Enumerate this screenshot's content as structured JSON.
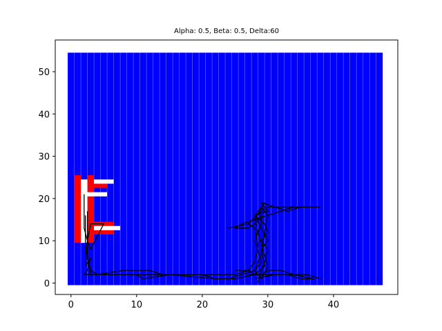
{
  "chart_data": {
    "type": "heatmap",
    "title": "Alpha: 0.5, Beta: 0.5, Delta:60",
    "xlabel": "",
    "ylabel": "",
    "xlim": [
      -2.4,
      49.8
    ],
    "ylim": [
      -2.7,
      57.5
    ],
    "xticks": [
      0,
      10,
      20,
      30,
      40
    ],
    "yticks": [
      0,
      10,
      20,
      30,
      40,
      50
    ],
    "grid": false,
    "colors": {
      "background_cells": "#0000ff",
      "cell_separator": "#ffffff",
      "obstacle": "#ff0000",
      "highlight": "#ffffff",
      "trajectory": "#000000"
    },
    "grid_extent": {
      "x": [
        -0.5,
        47.5
      ],
      "y": [
        -0.5,
        54.5
      ]
    },
    "red_regions": [
      {
        "x": [
          0.5,
          1.5
        ],
        "y": [
          9.5,
          25.5
        ]
      },
      {
        "x": [
          2.5,
          3.5
        ],
        "y": [
          9.5,
          25.5
        ]
      },
      {
        "x": [
          3.5,
          5.5
        ],
        "y": [
          22.5,
          23.5
        ]
      },
      {
        "x": [
          3.5,
          6.5
        ],
        "y": [
          11.5,
          12.5
        ]
      },
      {
        "x": [
          3.5,
          6.5
        ],
        "y": [
          13.5,
          14.5
        ]
      }
    ],
    "white_regions": [
      {
        "x": [
          1.5,
          2.5
        ],
        "y": [
          9.5,
          24.5
        ]
      },
      {
        "x": [
          1.5,
          5.5
        ],
        "y": [
          20.5,
          21.5
        ]
      },
      {
        "x": [
          3.5,
          6.5
        ],
        "y": [
          23.5,
          24.5
        ]
      },
      {
        "x": [
          3.5,
          7.5
        ],
        "y": [
          12.5,
          13.5
        ]
      }
    ],
    "series": [
      {
        "x": [
          2,
          2,
          2,
          2.5,
          3,
          5,
          3,
          2.5,
          2.2,
          2.2,
          3,
          2.5,
          2,
          2,
          3,
          5,
          10,
          12,
          15,
          20,
          25,
          27,
          28,
          28.5,
          28,
          27,
          24,
          27,
          29,
          30,
          31,
          33,
          35,
          38
        ],
        "y": [
          21,
          17,
          13,
          10,
          8,
          14,
          14,
          10,
          7,
          4,
          6,
          3,
          2,
          2,
          2,
          2,
          2,
          2,
          2,
          2,
          2,
          3,
          5,
          9,
          13,
          14,
          13,
          14,
          17,
          18,
          18,
          18,
          18,
          18
        ]
      },
      {
        "x": [
          2.5,
          2.5,
          2.5,
          3,
          4,
          10,
          11,
          15,
          22,
          24,
          26,
          28,
          29,
          28,
          29,
          29,
          28,
          27,
          25,
          26,
          28,
          30,
          32,
          34,
          38
        ],
        "y": [
          17,
          12,
          6,
          2,
          2,
          2,
          1,
          2,
          1,
          1,
          2,
          3,
          5,
          10,
          14,
          16,
          14,
          13,
          13,
          14,
          15,
          16,
          17,
          18,
          18
        ]
      },
      {
        "x": [
          2.2,
          2.2,
          3,
          4,
          8,
          12,
          14,
          20,
          22,
          25,
          28,
          29.5,
          29,
          30,
          29,
          28,
          30,
          29,
          31,
          33,
          35,
          37
        ],
        "y": [
          16,
          8,
          3,
          2,
          3,
          3,
          2,
          2,
          1,
          1,
          2,
          4,
          8,
          10,
          13,
          16,
          17,
          19,
          18,
          17,
          18,
          18
        ]
      },
      {
        "x": [
          28.5,
          29,
          29.5,
          30,
          29,
          30,
          29.5,
          28,
          29,
          30,
          29.5,
          29,
          28,
          29,
          30,
          29,
          28,
          29.5
        ],
        "y": [
          0,
          3,
          5,
          8,
          10,
          12,
          14,
          16,
          18,
          16,
          12,
          7,
          3,
          1,
          4,
          9,
          15,
          19
        ]
      },
      {
        "x": [
          25,
          27,
          28,
          29,
          30,
          32,
          34,
          36,
          38,
          36,
          34,
          32,
          30,
          29
        ],
        "y": [
          3,
          3,
          2,
          2,
          3,
          3,
          2,
          2,
          1,
          2,
          2,
          3,
          3,
          2
        ]
      },
      {
        "x": [
          27,
          30,
          33,
          35,
          37,
          34,
          31,
          28
        ],
        "y": [
          2,
          2,
          2,
          1,
          1,
          2,
          2,
          1
        ]
      }
    ]
  }
}
